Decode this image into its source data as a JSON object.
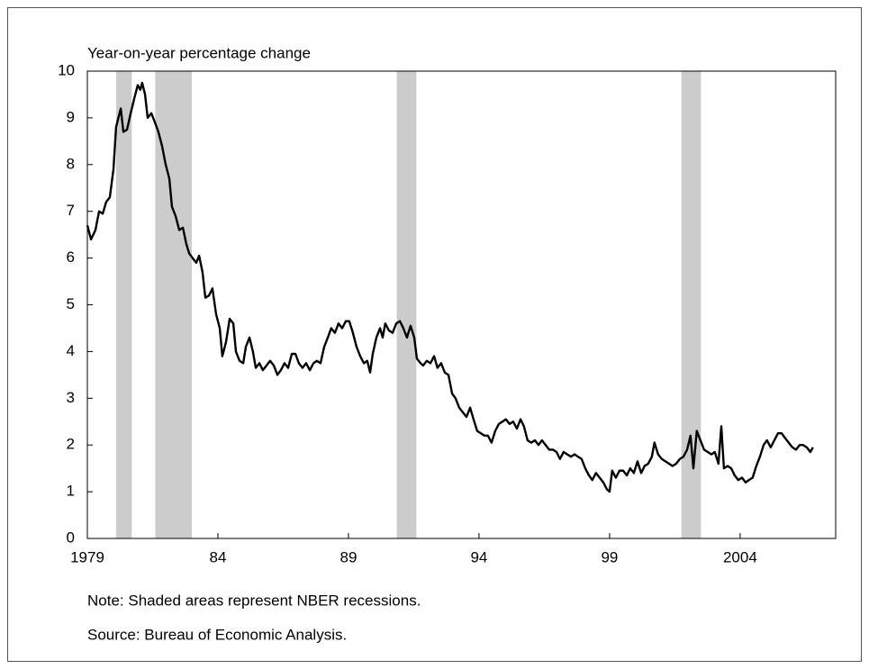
{
  "chart_data": {
    "type": "line",
    "ylabel": "Year-on-year percentage change",
    "notes": [
      "Note: Shaded areas represent NBER recessions.",
      "Source: Bureau of Economic Analysis."
    ],
    "xlim": [
      1979,
      2007.66
    ],
    "xticks": [
      1979,
      {
        "value": 1984,
        "label": "84"
      },
      {
        "value": 1989,
        "label": "89"
      },
      {
        "value": 1994,
        "label": "94"
      },
      {
        "value": 1999,
        "label": "99"
      },
      2004
    ],
    "ylim": [
      0,
      10
    ],
    "yticks": [
      0,
      1,
      2,
      3,
      4,
      5,
      6,
      7,
      8,
      9,
      10
    ],
    "recessions": [
      [
        1980.1,
        1980.7
      ],
      [
        1981.6,
        1983.0
      ],
      [
        1990.85,
        1991.6
      ],
      [
        2001.75,
        2002.5
      ]
    ],
    "recession_color": "#cccccc",
    "series": [
      {
        "color": "#000000",
        "x": [
          1979.0,
          1979.14,
          1979.31,
          1979.45,
          1979.59,
          1979.72,
          1979.86,
          1980.0,
          1980.1,
          1980.28,
          1980.38,
          1980.52,
          1980.66,
          1980.79,
          1980.93,
          1981.03,
          1981.1,
          1981.21,
          1981.31,
          1981.45,
          1981.59,
          1981.72,
          1981.86,
          1982.0,
          1982.14,
          1982.24,
          1982.38,
          1982.52,
          1982.66,
          1982.79,
          1982.9,
          1983.03,
          1983.17,
          1983.28,
          1983.41,
          1983.52,
          1983.66,
          1983.79,
          1983.93,
          1984.07,
          1984.17,
          1984.31,
          1984.45,
          1984.59,
          1984.69,
          1984.83,
          1984.97,
          1985.07,
          1985.21,
          1985.34,
          1985.45,
          1985.59,
          1985.72,
          1985.86,
          1986.0,
          1986.14,
          1986.28,
          1986.41,
          1986.55,
          1986.69,
          1986.83,
          1986.97,
          1987.1,
          1987.24,
          1987.38,
          1987.52,
          1987.66,
          1987.79,
          1987.93,
          1988.07,
          1988.21,
          1988.34,
          1988.48,
          1988.62,
          1988.76,
          1988.9,
          1989.03,
          1989.17,
          1989.31,
          1989.45,
          1989.59,
          1989.72,
          1989.83,
          1989.93,
          1990.07,
          1990.21,
          1990.31,
          1990.41,
          1990.55,
          1990.69,
          1990.83,
          1990.97,
          1991.1,
          1991.24,
          1991.38,
          1991.52,
          1991.62,
          1991.76,
          1991.86,
          1992.0,
          1992.14,
          1992.28,
          1992.41,
          1992.55,
          1992.69,
          1992.83,
          1992.97,
          1993.1,
          1993.24,
          1993.38,
          1993.52,
          1993.66,
          1993.79,
          1993.93,
          1994.07,
          1994.21,
          1994.34,
          1994.48,
          1994.62,
          1994.76,
          1994.9,
          1995.03,
          1995.17,
          1995.31,
          1995.45,
          1995.59,
          1995.72,
          1995.86,
          1996.0,
          1996.14,
          1996.28,
          1996.41,
          1996.55,
          1996.69,
          1996.83,
          1996.97,
          1997.1,
          1997.24,
          1997.38,
          1997.52,
          1997.66,
          1997.79,
          1997.93,
          1998.07,
          1998.21,
          1998.34,
          1998.48,
          1998.62,
          1998.76,
          1998.9,
          1999.0,
          1999.1,
          1999.24,
          1999.38,
          1999.52,
          1999.66,
          1999.79,
          1999.93,
          2000.07,
          2000.21,
          2000.34,
          2000.48,
          2000.62,
          2000.72,
          2000.86,
          2001.0,
          2001.14,
          2001.28,
          2001.41,
          2001.55,
          2001.69,
          2001.83,
          2001.97,
          2002.1,
          2002.21,
          2002.34,
          2002.48,
          2002.62,
          2002.76,
          2002.9,
          2003.03,
          2003.17,
          2003.28,
          2003.38,
          2003.52,
          2003.66,
          2003.79,
          2003.93,
          2004.07,
          2004.21,
          2004.34,
          2004.48,
          2004.62,
          2004.76,
          2004.9,
          2005.03,
          2005.17,
          2005.31,
          2005.45,
          2005.59,
          2005.72,
          2005.86,
          2006.0,
          2006.14,
          2006.28,
          2006.41,
          2006.55,
          2006.69,
          2006.79
        ],
        "values": [
          6.7,
          6.4,
          6.6,
          7.0,
          6.95,
          7.2,
          7.3,
          7.9,
          8.8,
          9.2,
          8.7,
          8.75,
          9.1,
          9.4,
          9.7,
          9.6,
          9.75,
          9.5,
          9.0,
          9.1,
          8.9,
          8.7,
          8.4,
          8.0,
          7.7,
          7.1,
          6.9,
          6.6,
          6.65,
          6.3,
          6.1,
          6.0,
          5.9,
          6.05,
          5.7,
          5.15,
          5.2,
          5.35,
          4.8,
          4.5,
          3.9,
          4.2,
          4.7,
          4.6,
          4.0,
          3.8,
          3.75,
          4.1,
          4.3,
          4.0,
          3.65,
          3.75,
          3.6,
          3.7,
          3.8,
          3.7,
          3.5,
          3.6,
          3.75,
          3.65,
          3.95,
          3.95,
          3.75,
          3.65,
          3.75,
          3.6,
          3.75,
          3.8,
          3.75,
          4.1,
          4.3,
          4.5,
          4.4,
          4.6,
          4.5,
          4.65,
          4.65,
          4.4,
          4.1,
          3.9,
          3.75,
          3.8,
          3.55,
          3.95,
          4.3,
          4.5,
          4.3,
          4.6,
          4.45,
          4.4,
          4.6,
          4.65,
          4.5,
          4.3,
          4.55,
          4.3,
          3.85,
          3.75,
          3.7,
          3.8,
          3.75,
          3.9,
          3.65,
          3.75,
          3.55,
          3.5,
          3.1,
          3.0,
          2.8,
          2.7,
          2.6,
          2.8,
          2.55,
          2.3,
          2.25,
          2.2,
          2.2,
          2.05,
          2.3,
          2.45,
          2.5,
          2.55,
          2.45,
          2.5,
          2.35,
          2.55,
          2.4,
          2.1,
          2.05,
          2.1,
          2.0,
          2.1,
          2.0,
          1.9,
          1.9,
          1.85,
          1.7,
          1.85,
          1.8,
          1.75,
          1.8,
          1.75,
          1.7,
          1.5,
          1.35,
          1.25,
          1.4,
          1.3,
          1.2,
          1.05,
          1.0,
          1.45,
          1.3,
          1.45,
          1.45,
          1.35,
          1.5,
          1.4,
          1.65,
          1.4,
          1.55,
          1.6,
          1.75,
          2.05,
          1.8,
          1.7,
          1.65,
          1.6,
          1.55,
          1.6,
          1.7,
          1.75,
          1.9,
          2.2,
          1.5,
          2.3,
          2.1,
          1.9,
          1.85,
          1.8,
          1.85,
          1.6,
          2.4,
          1.5,
          1.55,
          1.5,
          1.35,
          1.25,
          1.3,
          1.2,
          1.25,
          1.3,
          1.55,
          1.75,
          2.0,
          2.1,
          1.95,
          2.1,
          2.25,
          2.25,
          2.15,
          2.05,
          1.95,
          1.9,
          2.0,
          2.0,
          1.95,
          1.85,
          1.95
        ]
      }
    ]
  }
}
